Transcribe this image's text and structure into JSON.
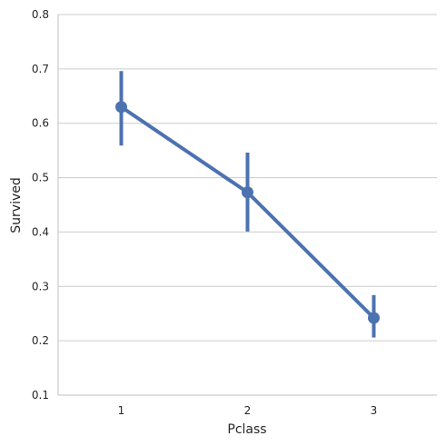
{
  "chart_data": {
    "type": "line",
    "subtype": "pointplot",
    "title": "",
    "xlabel": "Pclass",
    "ylabel": "Survived",
    "categories": [
      "1",
      "2",
      "3"
    ],
    "series": [
      {
        "values": [
          0.63,
          0.473,
          0.242
        ],
        "ci_low": [
          0.559,
          0.401,
          0.206
        ],
        "ci_high": [
          0.696,
          0.546,
          0.284
        ]
      }
    ],
    "ylim": [
      0.1,
      0.8
    ],
    "yticks": [
      "0.1",
      "0.2",
      "0.3",
      "0.4",
      "0.5",
      "0.6",
      "0.7",
      "0.8"
    ],
    "grid": "horizontal",
    "legend": "none",
    "colors": {
      "series": "#4c72b0",
      "grid": "#cccccc",
      "text": "#262626"
    }
  }
}
